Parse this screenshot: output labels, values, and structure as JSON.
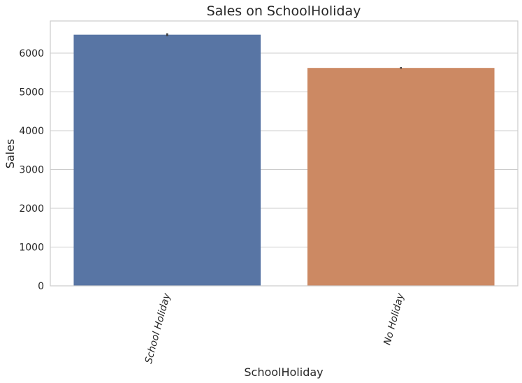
{
  "chart_data": {
    "type": "bar",
    "title": "Sales on SchoolHoliday",
    "xlabel": "SchoolHoliday",
    "ylabel": "Sales",
    "categories": [
      "School Holiday",
      "No Holiday"
    ],
    "values": [
      6476,
      5619
    ],
    "error_low": [
      6440,
      5600
    ],
    "error_high": [
      6512,
      5640
    ],
    "colors": [
      "#5875a4",
      "#cc8963"
    ],
    "ylim": [
      0,
      6830
    ],
    "yticks": [
      0,
      1000,
      2000,
      3000,
      4000,
      5000,
      6000
    ],
    "grid": true,
    "legend": "none"
  }
}
